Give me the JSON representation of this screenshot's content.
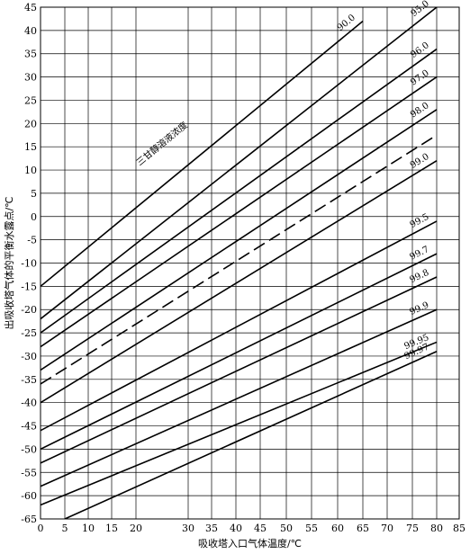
{
  "chart_data": {
    "type": "line",
    "xlabel": "吸收塔入口气体温度/℃",
    "ylabel": "出吸收塔气体的平衡水露点/℃",
    "annotation": "三甘醇溶液浓度",
    "xlim": [
      0,
      85
    ],
    "ylim": [
      -65,
      45
    ],
    "x_scale": "nonlinear (0–20 compressed, 30–85 stretched)",
    "grid": true,
    "x_ticks": [
      0,
      5,
      10,
      15,
      20,
      30,
      35,
      40,
      45,
      50,
      55,
      60,
      65,
      70,
      75,
      80,
      85
    ],
    "y_ticks": [
      45,
      40,
      35,
      30,
      25,
      20,
      15,
      10,
      5,
      0,
      -5,
      -10,
      -15,
      -20,
      -25,
      -30,
      -35,
      -40,
      -45,
      -50,
      -55,
      -60,
      -65
    ],
    "x_tick_labels": [
      "0",
      "5",
      "10",
      "15",
      "20",
      "30",
      "35",
      "40",
      "45",
      "50",
      "55",
      "60",
      "65",
      "70",
      "75",
      "80",
      "85"
    ],
    "y_tick_labels": [
      "45",
      "40",
      "35",
      "30",
      "25",
      "20",
      "15",
      "10",
      "5",
      "0",
      "-5",
      "-10",
      "-15",
      "-20",
      "-25",
      "-30",
      "-35",
      "-40",
      "-45",
      "-50",
      "-55",
      "-60",
      "-65"
    ],
    "series": [
      {
        "name": "90.0",
        "x": [
          0,
          65
        ],
        "y": [
          -15,
          42
        ],
        "dashed": false
      },
      {
        "name": "95.0",
        "x": [
          0,
          80
        ],
        "y": [
          -22,
          45
        ],
        "dashed": false
      },
      {
        "name": "96.0",
        "x": [
          0,
          80
        ],
        "y": [
          -25,
          36
        ],
        "dashed": false
      },
      {
        "name": "97.0",
        "x": [
          0,
          80
        ],
        "y": [
          -28,
          30
        ],
        "dashed": false
      },
      {
        "name": "98.0",
        "x": [
          0,
          80
        ],
        "y": [
          -33,
          23
        ],
        "dashed": false
      },
      {
        "name": "",
        "x": [
          0,
          80
        ],
        "y": [
          -36,
          17.5
        ],
        "dashed": true
      },
      {
        "name": "99.0",
        "x": [
          0,
          80
        ],
        "y": [
          -40,
          12
        ],
        "dashed": false
      },
      {
        "name": "99.5",
        "x": [
          0,
          80
        ],
        "y": [
          -46,
          -1
        ],
        "dashed": false
      },
      {
        "name": "99.7",
        "x": [
          0,
          80
        ],
        "y": [
          -50,
          -8
        ],
        "dashed": false
      },
      {
        "name": "99.8",
        "x": [
          0,
          80
        ],
        "y": [
          -53,
          -13
        ],
        "dashed": false
      },
      {
        "name": "99.9",
        "x": [
          0,
          80
        ],
        "y": [
          -58,
          -20
        ],
        "dashed": false
      },
      {
        "name": "99.95",
        "x": [
          0,
          80
        ],
        "y": [
          -62,
          -27
        ],
        "dashed": false
      },
      {
        "name": "99.97",
        "x": [
          5,
          80
        ],
        "y": [
          -65,
          -29
        ],
        "dashed": false
      }
    ]
  }
}
